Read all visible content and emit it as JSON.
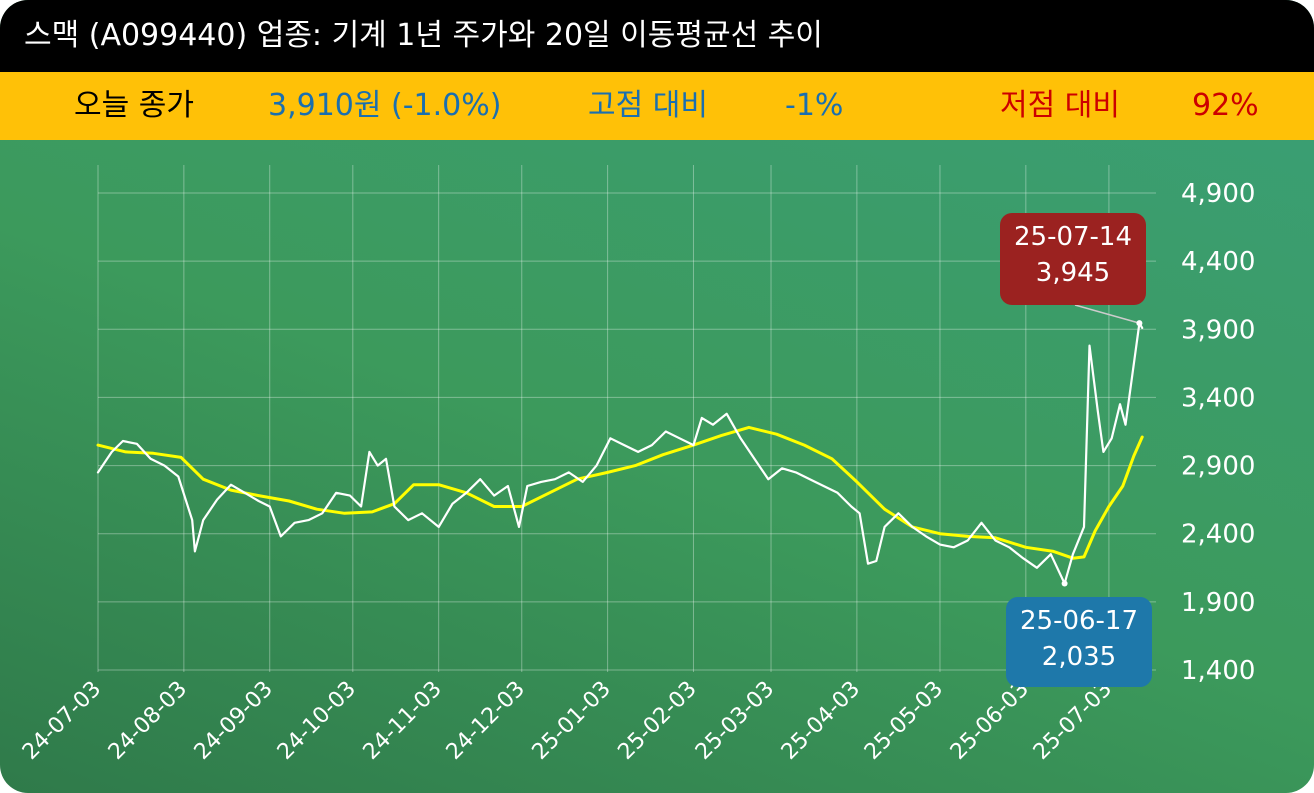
{
  "header": {
    "title": "스맥 (A099440) 업종: 기계 1년 주가와 20일 이동평균선 추이"
  },
  "summary": {
    "close_label": "오늘 종가",
    "close_value": "3,910원 (-1.0%)",
    "high_label": "고점 대비",
    "high_value": "-1%",
    "low_label": "저점 대비",
    "low_value": "92%"
  },
  "colors": {
    "price_line": "#ffffff",
    "ma_line": "#ffff00",
    "high_callout": "#9b2220",
    "low_callout": "#1e78aa",
    "close_label": "#000000",
    "high_text": "#1a6fb0",
    "low_text": "#cc0000"
  },
  "chart_data": {
    "type": "line",
    "title": "",
    "xlabel": "",
    "ylabel": "",
    "ylim": [
      1400,
      4900
    ],
    "yticks": [
      1400,
      1900,
      2400,
      2900,
      3400,
      3900,
      4400,
      4900
    ],
    "ytick_labels": [
      "1,400",
      "1,900",
      "2,400",
      "2,900",
      "3,400",
      "3,900",
      "4,400",
      "4,900"
    ],
    "xtick_labels": [
      "24-07-03",
      "24-08-03",
      "24-09-03",
      "24-10-03",
      "24-11-03",
      "24-12-03",
      "25-01-03",
      "25-02-03",
      "25-03-03",
      "25-04-03",
      "25-05-03",
      "25-06-03",
      "25-07-03"
    ],
    "grid": true,
    "series": [
      {
        "name": "",
        "color": "#ffffff",
        "points": [
          [
            "24-07-03",
            2850
          ],
          [
            "24-07-08",
            3000
          ],
          [
            "24-07-12",
            3080
          ],
          [
            "24-07-17",
            3060
          ],
          [
            "24-07-22",
            2950
          ],
          [
            "24-07-27",
            2900
          ],
          [
            "24-08-01",
            2820
          ],
          [
            "24-08-06",
            2500
          ],
          [
            "24-08-07",
            2270
          ],
          [
            "24-08-10",
            2500
          ],
          [
            "24-08-15",
            2650
          ],
          [
            "24-08-20",
            2760
          ],
          [
            "24-08-25",
            2700
          ],
          [
            "24-08-30",
            2640
          ],
          [
            "24-09-03",
            2600
          ],
          [
            "24-09-07",
            2380
          ],
          [
            "24-09-12",
            2480
          ],
          [
            "24-09-17",
            2500
          ],
          [
            "24-09-22",
            2550
          ],
          [
            "24-09-27",
            2700
          ],
          [
            "24-10-02",
            2680
          ],
          [
            "24-10-06",
            2600
          ],
          [
            "24-10-09",
            3000
          ],
          [
            "24-10-12",
            2900
          ],
          [
            "24-10-15",
            2950
          ],
          [
            "24-10-18",
            2600
          ],
          [
            "24-10-23",
            2500
          ],
          [
            "24-10-28",
            2550
          ],
          [
            "24-11-03",
            2450
          ],
          [
            "24-11-08",
            2620
          ],
          [
            "24-11-13",
            2700
          ],
          [
            "24-11-18",
            2800
          ],
          [
            "24-11-23",
            2680
          ],
          [
            "24-11-28",
            2750
          ],
          [
            "24-12-02",
            2450
          ],
          [
            "24-12-05",
            2750
          ],
          [
            "24-12-10",
            2780
          ],
          [
            "24-12-15",
            2800
          ],
          [
            "24-12-20",
            2850
          ],
          [
            "24-12-25",
            2780
          ],
          [
            "24-12-30",
            2900
          ],
          [
            "25-01-04",
            3100
          ],
          [
            "25-01-09",
            3050
          ],
          [
            "25-01-14",
            3000
          ],
          [
            "25-01-19",
            3050
          ],
          [
            "25-01-24",
            3150
          ],
          [
            "25-01-29",
            3100
          ],
          [
            "25-02-03",
            3050
          ],
          [
            "25-02-06",
            3250
          ],
          [
            "25-02-10",
            3200
          ],
          [
            "25-02-15",
            3280
          ],
          [
            "25-02-20",
            3100
          ],
          [
            "25-02-25",
            2950
          ],
          [
            "25-03-02",
            2800
          ],
          [
            "25-03-07",
            2880
          ],
          [
            "25-03-12",
            2850
          ],
          [
            "25-03-17",
            2800
          ],
          [
            "25-03-22",
            2750
          ],
          [
            "25-03-27",
            2700
          ],
          [
            "25-04-01",
            2600
          ],
          [
            "25-04-04",
            2550
          ],
          [
            "25-04-07",
            2180
          ],
          [
            "25-04-10",
            2200
          ],
          [
            "25-04-13",
            2450
          ],
          [
            "25-04-18",
            2550
          ],
          [
            "25-04-23",
            2450
          ],
          [
            "25-04-28",
            2380
          ],
          [
            "25-05-03",
            2320
          ],
          [
            "25-05-08",
            2300
          ],
          [
            "25-05-13",
            2350
          ],
          [
            "25-05-18",
            2480
          ],
          [
            "25-05-23",
            2350
          ],
          [
            "25-05-28",
            2300
          ],
          [
            "25-06-02",
            2220
          ],
          [
            "25-06-07",
            2150
          ],
          [
            "25-06-12",
            2250
          ],
          [
            "25-06-17",
            2035
          ],
          [
            "25-06-20",
            2250
          ],
          [
            "25-06-24",
            2450
          ],
          [
            "25-06-26",
            3780
          ],
          [
            "25-06-29",
            3300
          ],
          [
            "25-07-01",
            3000
          ],
          [
            "25-07-04",
            3100
          ],
          [
            "25-07-07",
            3350
          ],
          [
            "25-07-09",
            3200
          ],
          [
            "25-07-14",
            3945
          ],
          [
            "25-07-15",
            3910
          ]
        ]
      },
      {
        "name": "",
        "color": "#ffff00",
        "points": [
          [
            "24-07-03",
            3050
          ],
          [
            "24-07-13",
            3000
          ],
          [
            "24-07-23",
            2990
          ],
          [
            "24-08-02",
            2960
          ],
          [
            "24-08-10",
            2800
          ],
          [
            "24-08-20",
            2720
          ],
          [
            "24-08-30",
            2680
          ],
          [
            "24-09-10",
            2640
          ],
          [
            "24-09-20",
            2580
          ],
          [
            "24-09-30",
            2550
          ],
          [
            "24-10-10",
            2560
          ],
          [
            "24-10-18",
            2620
          ],
          [
            "24-10-25",
            2760
          ],
          [
            "24-11-03",
            2760
          ],
          [
            "24-11-13",
            2700
          ],
          [
            "24-11-23",
            2600
          ],
          [
            "24-12-03",
            2600
          ],
          [
            "24-12-13",
            2700
          ],
          [
            "24-12-23",
            2800
          ],
          [
            "25-01-03",
            2850
          ],
          [
            "25-01-13",
            2900
          ],
          [
            "25-01-23",
            2980
          ],
          [
            "25-02-03",
            3050
          ],
          [
            "25-02-13",
            3120
          ],
          [
            "25-02-23",
            3180
          ],
          [
            "25-03-05",
            3130
          ],
          [
            "25-03-15",
            3050
          ],
          [
            "25-03-25",
            2950
          ],
          [
            "25-04-03",
            2780
          ],
          [
            "25-04-13",
            2580
          ],
          [
            "25-04-23",
            2450
          ],
          [
            "25-05-03",
            2400
          ],
          [
            "25-05-13",
            2380
          ],
          [
            "25-05-23",
            2370
          ],
          [
            "25-06-03",
            2300
          ],
          [
            "25-06-13",
            2270
          ],
          [
            "25-06-20",
            2220
          ],
          [
            "25-06-24",
            2230
          ],
          [
            "25-06-28",
            2420
          ],
          [
            "25-07-03",
            2600
          ],
          [
            "25-07-08",
            2750
          ],
          [
            "25-07-12",
            2970
          ],
          [
            "25-07-15",
            3110
          ]
        ]
      }
    ],
    "annotations": [
      {
        "kind": "high",
        "date": "25-07-14",
        "value": 3945,
        "label_date": "25-07-14",
        "label_value": "3,945"
      },
      {
        "kind": "low",
        "date": "25-06-17",
        "value": 2035,
        "label_date": "25-06-17",
        "label_value": "2,035"
      }
    ]
  }
}
